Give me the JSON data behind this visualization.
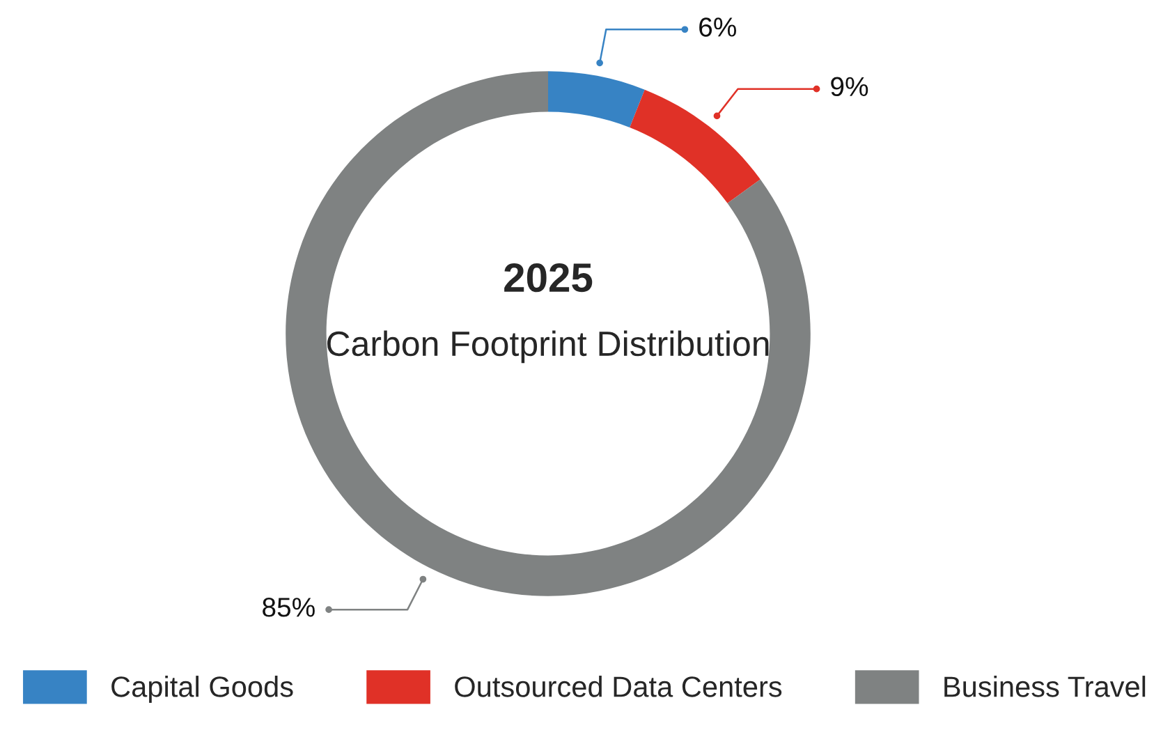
{
  "chart_data": {
    "type": "donut",
    "title": "2025",
    "subtitle": "Carbon Footprint Distribution",
    "categories": [
      "Capital Goods",
      "Outsourced Data Centers",
      "Business Travel"
    ],
    "values": [
      6,
      9,
      85
    ],
    "value_labels": [
      "6%",
      "9%",
      "85%"
    ],
    "colors": [
      "#3783c4",
      "#e03127",
      "#7f8282"
    ],
    "legend": "bottom"
  }
}
